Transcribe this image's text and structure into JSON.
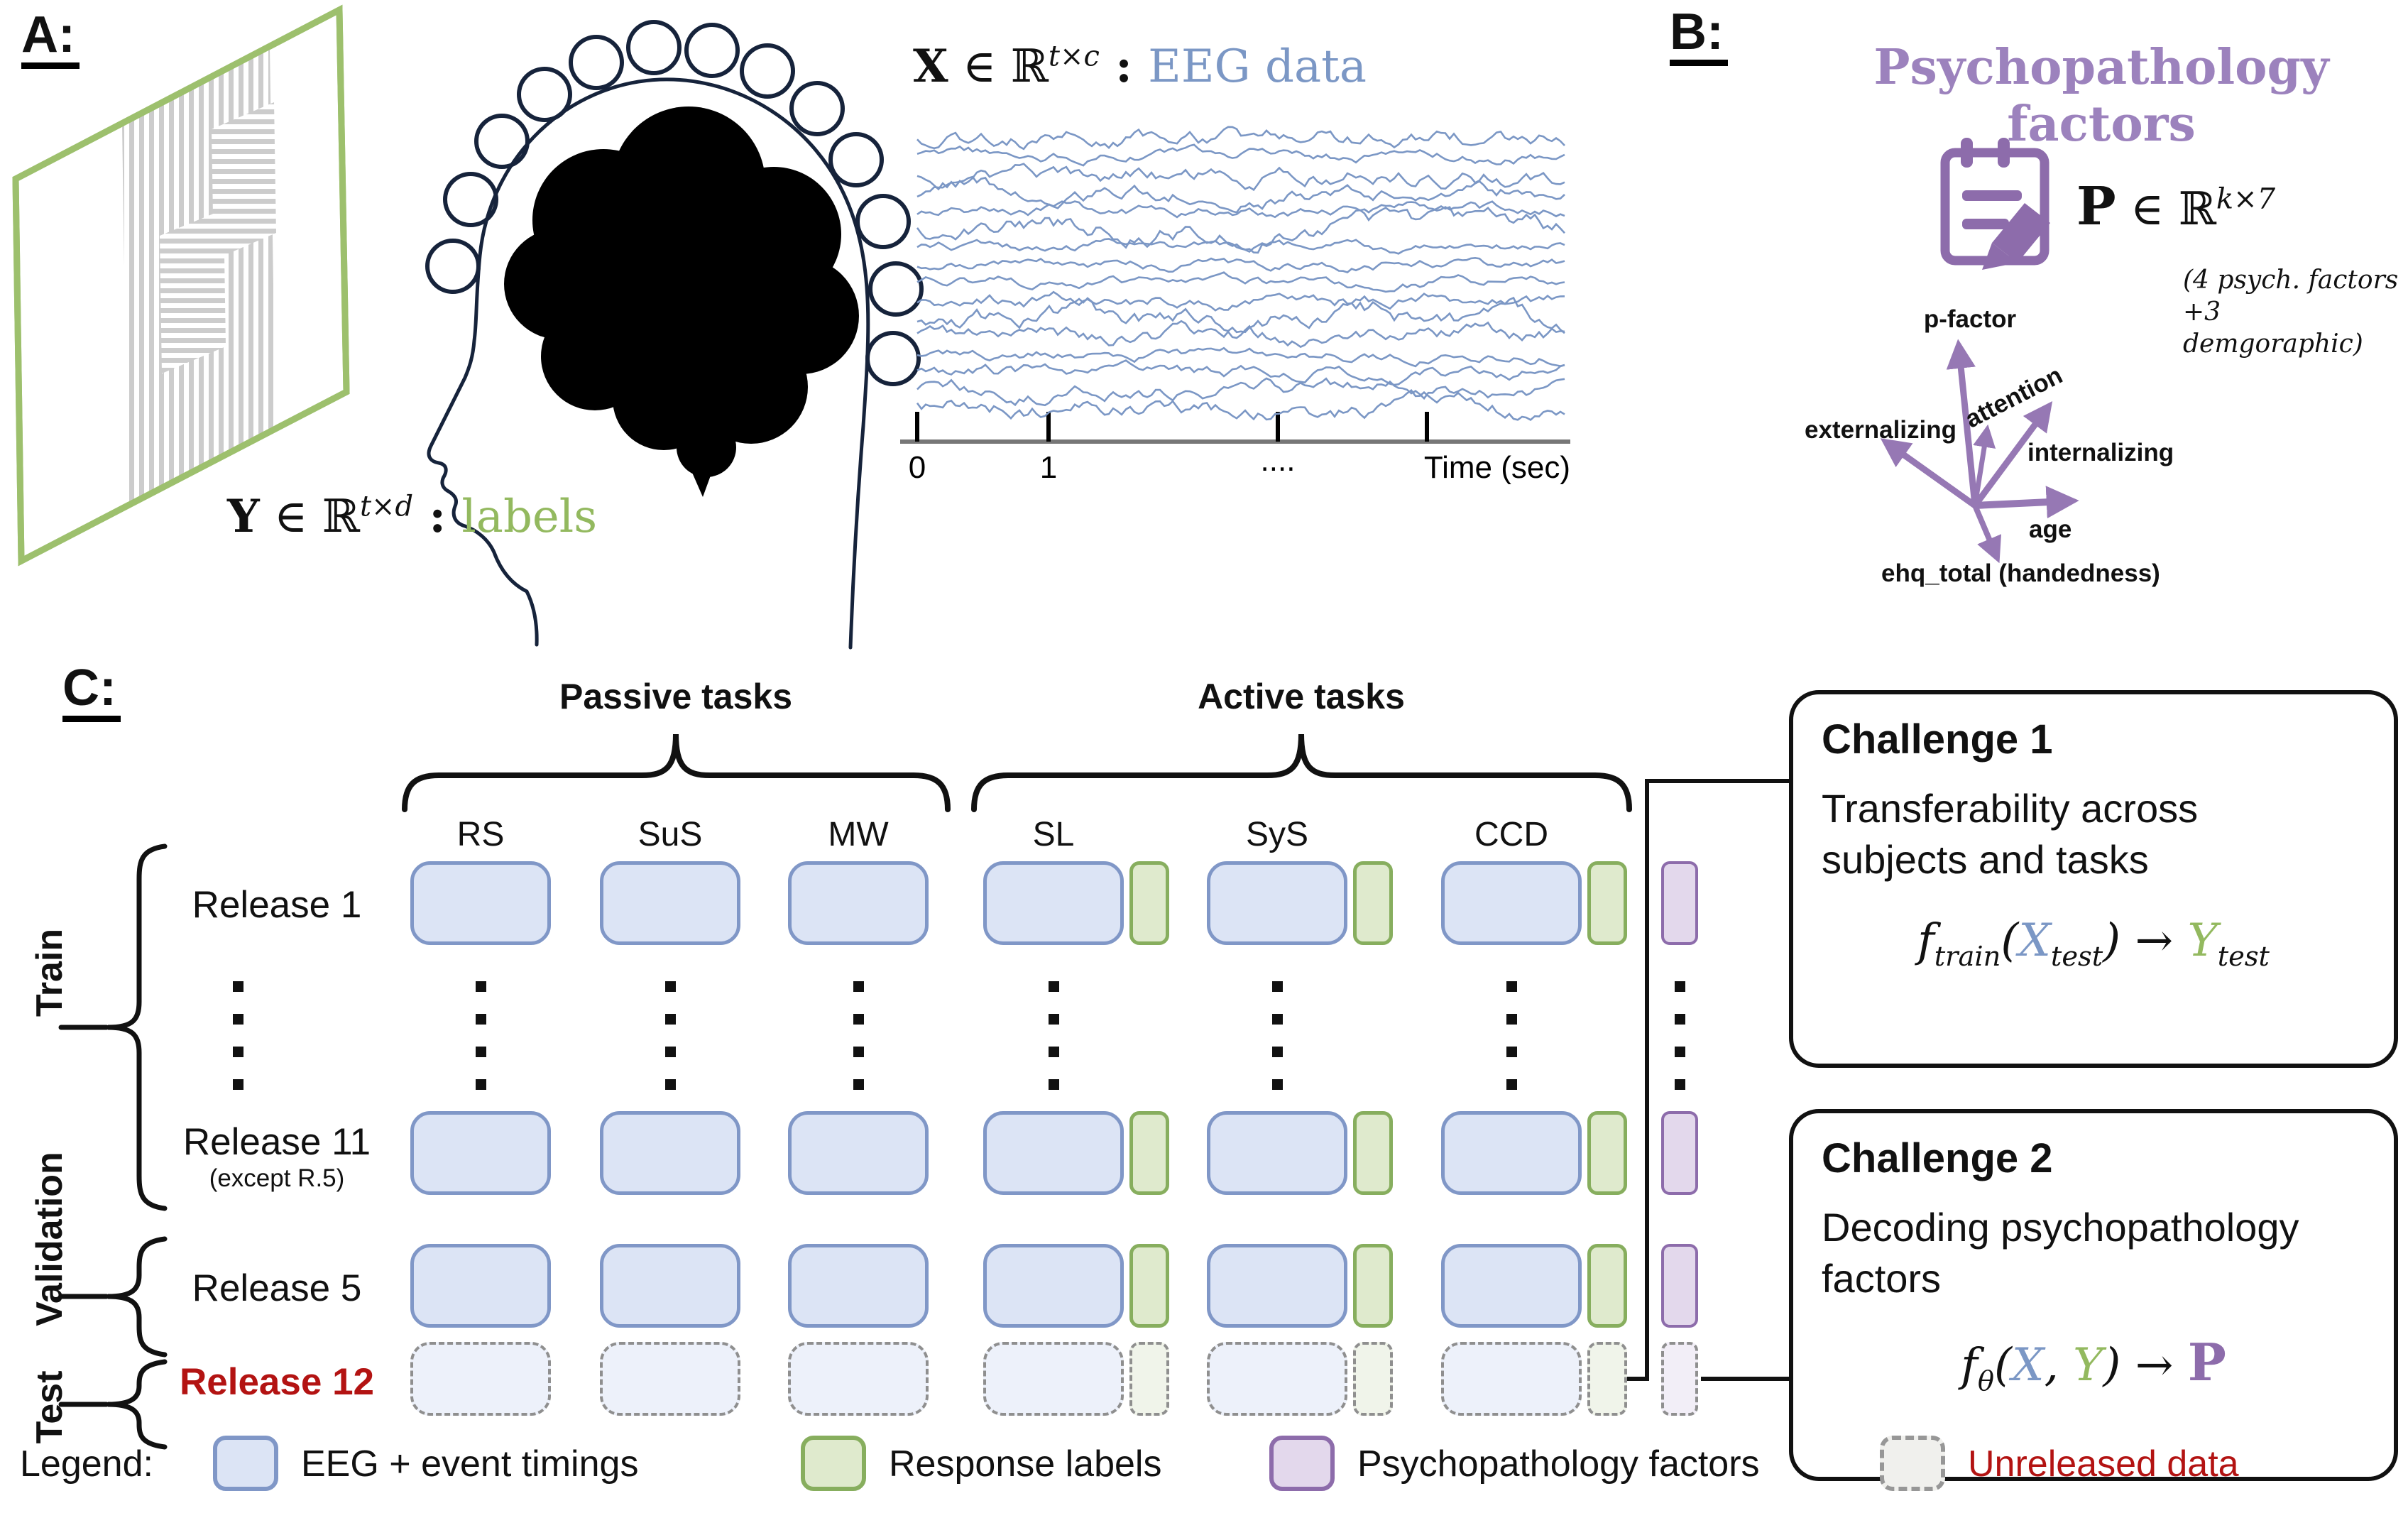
{
  "colors": {
    "eeg_blue_fill": "#dce4f5",
    "eeg_blue_border": "#8097c7",
    "response_green_fill": "#dfeacd",
    "response_green_border": "#87ae5e",
    "psych_purple_fill": "#e3d8ec",
    "psych_purple_border": "#8d6cab",
    "unreleased_gray_border": "#979797",
    "accent_blue_text": "#7b97c5",
    "accent_green_text": "#93b95f",
    "accent_purple_text": "#9c82bd",
    "accent_red_text": "#b31312",
    "arrow_purple": "#9678b4"
  },
  "panelA": {
    "label": "A:",
    "x_formula": {
      "var": "X",
      "rel": " ∈ ℝ",
      "sup": "t×c",
      "colon": " : ",
      "desc": "EEG data"
    },
    "y_formula": {
      "var": "Y",
      "rel": " ∈ ℝ",
      "sup": "t×d",
      "colon": " : ",
      "desc": "labels"
    },
    "eeg_axis": {
      "ticks": [
        "0",
        "1"
      ],
      "ellipsis": "....",
      "label": "Time (sec)"
    }
  },
  "panelB": {
    "label": "B:",
    "title": "Psychopathology factors",
    "p_formula": {
      "var": "P",
      "rel": " ∈ ℝ",
      "sup": "k×7"
    },
    "note_line1": "(4 psych. factors",
    "note_line2": "+3 demgoraphic)",
    "factors": {
      "p_factor": "p-factor",
      "attention": "attention",
      "internalizing": "internalizing",
      "externalizing": "externalizing",
      "age": "age",
      "ehq": "ehq_total (handedness)"
    }
  },
  "panelC": {
    "label": "C:",
    "passive_group": "Passive tasks",
    "active_group": "Active tasks",
    "columns": {
      "passive": [
        "RS",
        "SuS",
        "MW"
      ],
      "active": [
        "SL",
        "SyS",
        "CCD"
      ]
    },
    "splits": {
      "train": "Train",
      "validation": "Validation",
      "test": "Test"
    },
    "releases": {
      "r1": "Release 1",
      "r11": "Release 11",
      "r11_note": "(except R.5)",
      "r5": "Release 5",
      "r12": "Release 12"
    }
  },
  "challenge1": {
    "title": "Challenge 1",
    "desc_line1": "Transferability across",
    "desc_line2": "subjects and tasks",
    "formula": {
      "f": "f",
      "fsub": "train",
      "open": "(",
      "x": "X",
      "xsub": "test",
      "close": ")",
      "arrow": " → ",
      "y": "Y",
      "ysub": "test"
    }
  },
  "challenge2": {
    "title": "Challenge 2",
    "desc_line1": "Decoding psychopathology",
    "desc_line2": "factors",
    "formula": {
      "f": "f",
      "fsub": "θ",
      "open": "(",
      "x": "X",
      "comma": ", ",
      "y": "Y",
      "close": ")",
      "arrow": " → ",
      "p": "P"
    }
  },
  "legend": {
    "label": "Legend:",
    "items": [
      {
        "label": "EEG + event timings",
        "type": "eeg"
      },
      {
        "label": "Response labels",
        "type": "response"
      },
      {
        "label": "Psychopathology factors",
        "type": "psych"
      },
      {
        "label": "Unreleased data",
        "type": "unreleased"
      }
    ]
  }
}
